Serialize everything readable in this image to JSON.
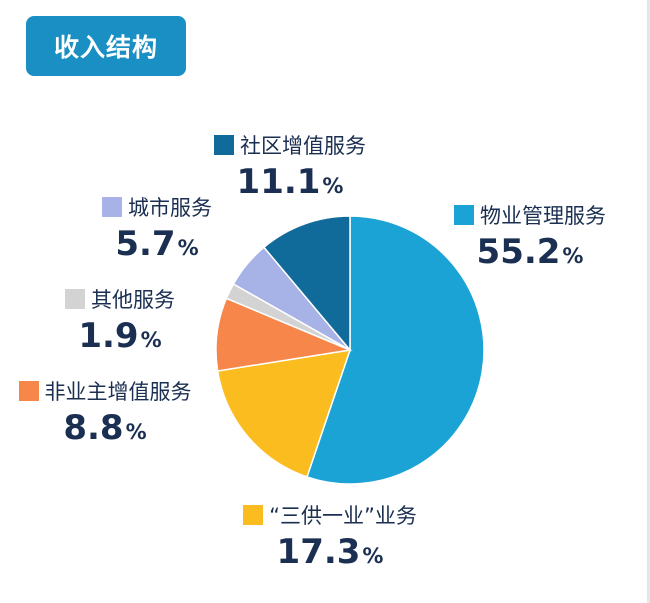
{
  "title": "收入结构",
  "chart_data": {
    "type": "pie",
    "title": "收入结构",
    "series": [
      {
        "name": "物业管理服务",
        "value": 55.2,
        "color": "#1ba3d6"
      },
      {
        "name": "“三供一业”业务",
        "value": 17.3,
        "color": "#fbbc20"
      },
      {
        "name": "非业主增值服务",
        "value": 8.8,
        "color": "#f7864a"
      },
      {
        "name": "其他服务",
        "value": 1.9,
        "color": "#d3d3d3"
      },
      {
        "name": "城市服务",
        "value": 5.7,
        "color": "#a7b2e6"
      },
      {
        "name": "社区增值服务",
        "value": 11.1,
        "color": "#106a9a"
      }
    ],
    "labels": [
      {
        "name": "社区增值服务",
        "value": "11.1",
        "unit": "%"
      },
      {
        "name": "城市服务",
        "value": "5.7",
        "unit": "%"
      },
      {
        "name": "物业管理服务",
        "value": "55.2",
        "unit": "%"
      },
      {
        "name": "其他服务",
        "value": "1.9",
        "unit": "%"
      },
      {
        "name": "非业主增值服务",
        "value": "8.8",
        "unit": "%"
      },
      {
        "name": "“三供一业”业务",
        "value": "17.3",
        "unit": "%"
      }
    ]
  }
}
